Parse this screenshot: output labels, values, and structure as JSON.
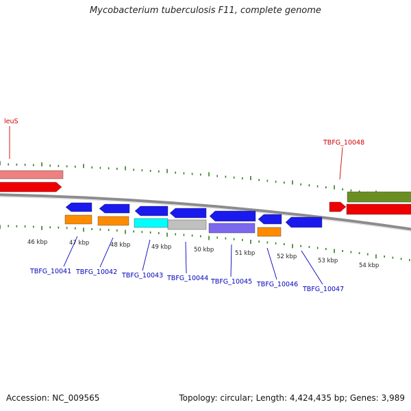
{
  "title": "Mycobacterium tuberculosis F11, complete genome",
  "footer": {
    "accession": "Accession: NC_009565",
    "summary": "Topology: circular; Length: 4,424,435 bp; Genes: 3,989"
  },
  "colors": {
    "backbone": "#8c8c8c",
    "tick": "#2e7d1e",
    "label_red": "#cc0000",
    "label_blue": "#0000bb",
    "gene_blue": "#1a1aee",
    "gene_orange": "#ff8c00",
    "gene_red": "#ee0000",
    "gene_pink": "#f08080",
    "gene_olive": "#6b8e23",
    "gene_cyan": "#00ffff",
    "gene_gray": "#c0c0c0",
    "gene_purple": "#7b68ee"
  },
  "scale_labels": [
    "46 kbp",
    "47 kbp",
    "48 kbp",
    "49 kbp",
    "50 kbp",
    "51 kbp",
    "52 kbp",
    "53 kbp",
    "54 kbp"
  ],
  "features": [
    {
      "label": "leuS",
      "color": "gene_red"
    },
    {
      "label": "TBFG_10048",
      "color": "gene_red"
    },
    {
      "label": "TBFG_10041",
      "color": "gene_blue"
    },
    {
      "label": "TBFG_10042",
      "color": "gene_blue"
    },
    {
      "label": "TBFG_10043",
      "color": "gene_blue"
    },
    {
      "label": "TBFG_10044",
      "color": "gene_blue"
    },
    {
      "label": "TBFG_10045",
      "color": "gene_blue"
    },
    {
      "label": "TBFG_10046",
      "color": "gene_blue"
    },
    {
      "label": "TBFG_10047",
      "color": "gene_blue"
    }
  ]
}
